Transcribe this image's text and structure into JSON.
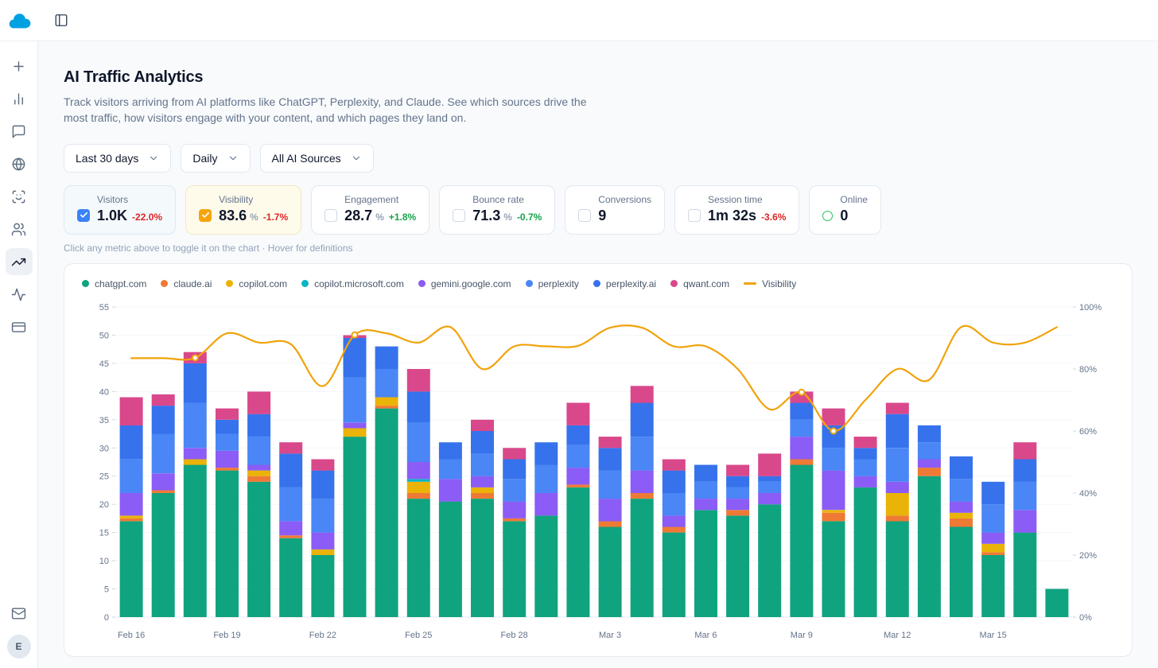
{
  "theme": {
    "red": "#dc2626",
    "green": "#16a34a",
    "logo_blue": "#00A1E0"
  },
  "topbar": {
    "toggle_icon": "panel-left-icon"
  },
  "sidebar": {
    "items": [
      {
        "id": "new",
        "icon": "plus-icon",
        "active": false
      },
      {
        "id": "analytics",
        "icon": "bar-chart-icon",
        "active": false
      },
      {
        "id": "messages",
        "icon": "message-icon",
        "active": false
      },
      {
        "id": "web",
        "icon": "globe-icon",
        "active": false
      },
      {
        "id": "scan",
        "icon": "scan-face-icon",
        "active": false
      },
      {
        "id": "audience",
        "icon": "users-icon",
        "active": false
      },
      {
        "id": "trends",
        "icon": "trending-up-icon",
        "active": true
      },
      {
        "id": "activity",
        "icon": "activity-icon",
        "active": false
      },
      {
        "id": "billing",
        "icon": "credit-card-icon",
        "active": false
      }
    ],
    "bottom_items": [
      {
        "id": "inbox",
        "icon": "mail-icon",
        "active": false
      }
    ],
    "avatar_initial": "E"
  },
  "page": {
    "title": "AI Traffic Analytics",
    "description": "Track visitors arriving from AI platforms like ChatGPT, Perplexity, and Claude. See which sources drive the most traffic, how visitors engage with your content, and which pages they land on.",
    "hint": "Click any metric above to toggle it on the chart · Hover for definitions"
  },
  "filters": [
    {
      "id": "date-range",
      "label": "Last 30 days"
    },
    {
      "id": "granularity",
      "label": "Daily"
    },
    {
      "id": "sources",
      "label": "All AI Sources"
    }
  ],
  "metrics": [
    {
      "id": "visitors",
      "label": "Visitors",
      "value": "1.0K",
      "delta": "-22.0%",
      "delta_color": "red",
      "checked": true,
      "accent": "#3b82f6",
      "bg": "#f4f9fc",
      "border": "#dde9f2"
    },
    {
      "id": "visibility",
      "label": "Visibility",
      "value": "83.6",
      "suffix": "%",
      "delta": "-1.7%",
      "delta_color": "red",
      "checked": true,
      "accent": "#f5a50b",
      "bg": "#fffbeb",
      "border": "#f3e7c3"
    },
    {
      "id": "engagement",
      "label": "Engagement",
      "value": "28.7",
      "suffix": "%",
      "delta": "+1.8%",
      "delta_color": "green",
      "checked": false
    },
    {
      "id": "bounce-rate",
      "label": "Bounce rate",
      "value": "71.3",
      "suffix": "%",
      "delta": "-0.7%",
      "delta_color": "green",
      "checked": false
    },
    {
      "id": "conversions",
      "label": "Conversions",
      "value": "9",
      "checked": false
    },
    {
      "id": "session-time",
      "label": "Session time",
      "value": "1m 32s",
      "delta": "-3.6%",
      "delta_color": "red",
      "checked": false
    },
    {
      "id": "online",
      "label": "Online",
      "value": "0",
      "indicator": "circle",
      "accent": "#22c55e"
    }
  ],
  "chart_data": {
    "type": "stacked-bar+line",
    "days": [
      "Feb 16",
      "Feb 17",
      "Feb 18",
      "Feb 19",
      "Feb 20",
      "Feb 21",
      "Feb 22",
      "Feb 23",
      "Feb 24",
      "Feb 25",
      "Feb 26",
      "Feb 27",
      "Feb 28",
      "Mar 1",
      "Mar 2",
      "Mar 3",
      "Mar 4",
      "Mar 5",
      "Mar 6",
      "Mar 7",
      "Mar 8",
      "Mar 9",
      "Mar 10",
      "Mar 11",
      "Mar 12",
      "Mar 13",
      "Mar 14",
      "Mar 15",
      "Mar 16",
      "Mar 17"
    ],
    "x_label_indices": [
      0,
      3,
      6,
      9,
      12,
      15,
      18,
      21,
      24,
      27
    ],
    "left_axis": {
      "min": 0,
      "max": 55,
      "ticks": [
        0,
        5,
        10,
        15,
        20,
        25,
        30,
        35,
        40,
        45,
        50,
        55
      ]
    },
    "right_axis": {
      "min": 0,
      "max": 100,
      "ticks": [
        0,
        20,
        40,
        60,
        80,
        100
      ],
      "suffix": "%"
    },
    "series": [
      {
        "name": "chatgpt.com",
        "color": "#10a37f",
        "values": [
          17,
          22,
          27,
          26,
          24,
          14,
          11,
          32,
          37,
          21,
          20.5,
          21,
          17,
          18,
          23,
          16,
          21,
          15,
          19,
          18,
          20,
          27,
          17,
          23,
          17,
          25,
          16,
          11,
          15,
          5
        ]
      },
      {
        "name": "claude.ai",
        "color": "#ee7a35",
        "values": [
          0.5,
          0.5,
          0,
          0.5,
          1,
          0.5,
          0,
          0,
          0.5,
          1,
          0,
          1,
          0.5,
          0,
          0.5,
          1,
          1,
          1,
          0,
          1,
          0,
          1,
          1.5,
          0,
          1,
          1.5,
          1.5,
          0.5,
          0,
          0
        ]
      },
      {
        "name": "copilot.com",
        "color": "#eab308",
        "values": [
          0.5,
          0,
          1,
          0,
          1,
          0,
          1,
          1.5,
          1.5,
          2,
          0,
          1,
          0,
          0,
          0,
          0,
          0,
          0,
          0,
          0,
          0,
          0,
          0.5,
          0,
          4,
          0,
          1,
          1.5,
          0,
          0
        ]
      },
      {
        "name": "copilot.microsoft.com",
        "color": "#0bb4c4",
        "values": [
          0,
          0,
          0,
          0,
          0,
          0,
          0,
          0,
          0,
          0.5,
          0,
          0,
          0,
          0,
          0,
          0,
          0,
          0,
          0,
          0,
          0,
          0,
          0,
          0,
          0,
          0,
          0,
          0,
          0,
          0
        ]
      },
      {
        "name": "gemini.google.com",
        "color": "#8b5cf6",
        "values": [
          4,
          3,
          2,
          3,
          1,
          2.5,
          3,
          1,
          0,
          3,
          4,
          2,
          3,
          4,
          3,
          4,
          4,
          2,
          2,
          2,
          2,
          4,
          7,
          2,
          2,
          1.5,
          2,
          2,
          4,
          0
        ]
      },
      {
        "name": "perplexity",
        "color": "#4a86f5",
        "values": [
          6,
          7,
          8,
          3,
          5,
          6,
          6,
          8,
          5,
          7,
          3.5,
          4,
          4,
          5,
          4,
          5,
          6,
          4,
          3,
          2,
          2,
          3,
          4,
          3,
          6,
          3,
          4,
          5,
          5,
          0
        ]
      },
      {
        "name": "perplexity.ai",
        "color": "#3672ec",
        "values": [
          6,
          5,
          7,
          2.5,
          4,
          6,
          5,
          7,
          4,
          5.5,
          3,
          4,
          3.5,
          4,
          3.5,
          4,
          6,
          4,
          3,
          2,
          1,
          3,
          4,
          2,
          6,
          3,
          4,
          4,
          4,
          0
        ]
      },
      {
        "name": "qwant.com",
        "color": "#d9488b",
        "values": [
          5,
          2,
          2,
          2,
          4,
          2,
          2,
          0.5,
          0,
          4,
          0,
          2,
          2,
          0,
          4,
          2,
          3,
          2,
          0,
          2,
          4,
          2,
          3,
          2,
          2,
          0,
          0,
          0,
          3,
          0
        ]
      }
    ],
    "line": {
      "name": "Visibility",
      "color": "#f0a30b",
      "axis": "right",
      "values": [
        83.5,
        83.5,
        83.6,
        91.5,
        88.5,
        88,
        74.5,
        91,
        91.5,
        88.5,
        93.5,
        80,
        87.3,
        87.3,
        87.5,
        93.3,
        93.3,
        87.3,
        87.3,
        80,
        67,
        72.5,
        60,
        70,
        80,
        76.5,
        93.5,
        88.5,
        88.5,
        93.5
      ],
      "markers": [
        2,
        7,
        21,
        22
      ]
    }
  }
}
